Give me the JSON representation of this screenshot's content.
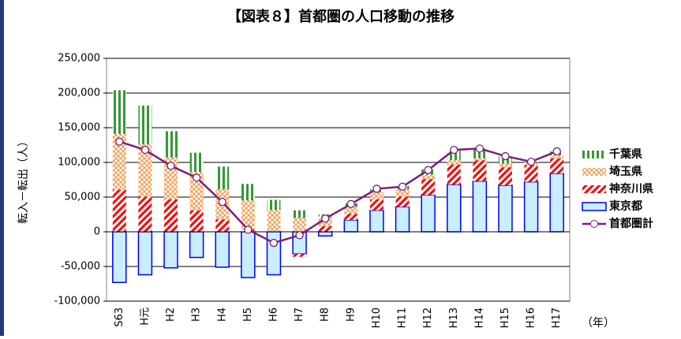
{
  "chart_data": {
    "type": "bar",
    "title": "【図表８】首都圏の人口移動の推移",
    "y_label": "転入－転出（人）",
    "x_label": "（年）",
    "categories": [
      "S63",
      "H元",
      "H2",
      "H3",
      "H4",
      "H5",
      "H6",
      "H7",
      "H8",
      "H9",
      "H10",
      "H11",
      "H12",
      "H13",
      "H14",
      "H15",
      "H16",
      "H17"
    ],
    "series": [
      {
        "name": "東京都",
        "type": "bar",
        "pattern": "solid",
        "color": "#0000ff",
        "fill_color": "#c8eeff",
        "values": [
          -73000,
          -62000,
          -52000,
          -37000,
          -51000,
          -66000,
          -62000,
          -32000,
          -6000,
          17000,
          31000,
          36000,
          53000,
          68000,
          73000,
          67000,
          72000,
          84000
        ]
      },
      {
        "name": "神奈川県",
        "type": "bar",
        "pattern": "diagonal",
        "color": "#ff0000",
        "values": [
          61000,
          51000,
          47000,
          31000,
          18000,
          3000,
          0,
          -4000,
          8000,
          9000,
          16000,
          15000,
          23000,
          29000,
          30000,
          26000,
          24000,
          22000
        ]
      },
      {
        "name": "埼玉県",
        "type": "bar",
        "pattern": "crosshatch",
        "color": "#f79646",
        "values": [
          80000,
          75000,
          60000,
          55000,
          43000,
          42000,
          31000,
          20000,
          14000,
          10000,
          10000,
          10000,
          6000,
          6000,
          3000,
          5000,
          3000,
          4000
        ]
      },
      {
        "name": "千葉県",
        "type": "bar",
        "pattern": "vertical",
        "color": "#339933",
        "values": [
          63000,
          56000,
          38000,
          28000,
          33000,
          24000,
          15000,
          11000,
          3000,
          5000,
          4000,
          5000,
          8000,
          14000,
          14000,
          11000,
          2000,
          6000
        ]
      },
      {
        "name": "首都圏計",
        "type": "line",
        "color": "#7b1f7b",
        "values": [
          130000,
          118000,
          95000,
          78000,
          43000,
          3000,
          -16000,
          -5000,
          19000,
          40000,
          62000,
          65000,
          89000,
          118000,
          120000,
          109000,
          101000,
          116000
        ]
      }
    ],
    "ylim": [
      -100000,
      250000
    ],
    "yticks": [
      {
        "value": -100000,
        "label": "-100,000"
      },
      {
        "value": -50000,
        "label": "-50,000"
      },
      0,
      {
        "value": 50000,
        "label": "50,000"
      },
      {
        "value": 100000,
        "label": "100,000"
      },
      {
        "value": 150000,
        "label": "150,000"
      },
      {
        "value": 200000,
        "label": "200,000"
      },
      {
        "value": 250000,
        "label": "250,000"
      }
    ],
    "grid": true,
    "legend": "right"
  }
}
